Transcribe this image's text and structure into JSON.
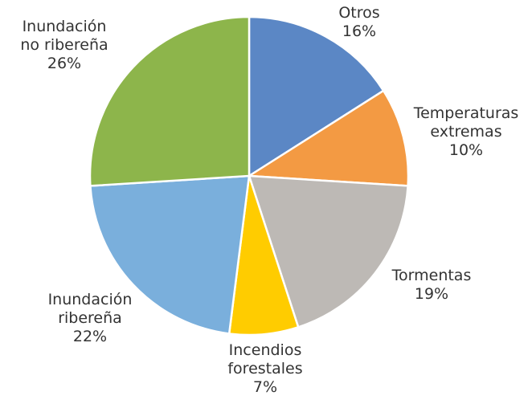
{
  "chart_data": {
    "type": "pie",
    "categories": [
      "Otros",
      "Temperaturas extremas",
      "Tormentas",
      "Incendios forestales",
      "Inundación ribereña",
      "Inundación no ribereña"
    ],
    "values": [
      16,
      10,
      19,
      7,
      22,
      26
    ],
    "value_labels": [
      "16%",
      "10%",
      "19%",
      "7%",
      "22%",
      "26%"
    ],
    "colors": [
      "#5b87c5",
      "#f39a43",
      "#bdb9b5",
      "#ffcc00",
      "#7aafdc",
      "#8db54b"
    ]
  }
}
